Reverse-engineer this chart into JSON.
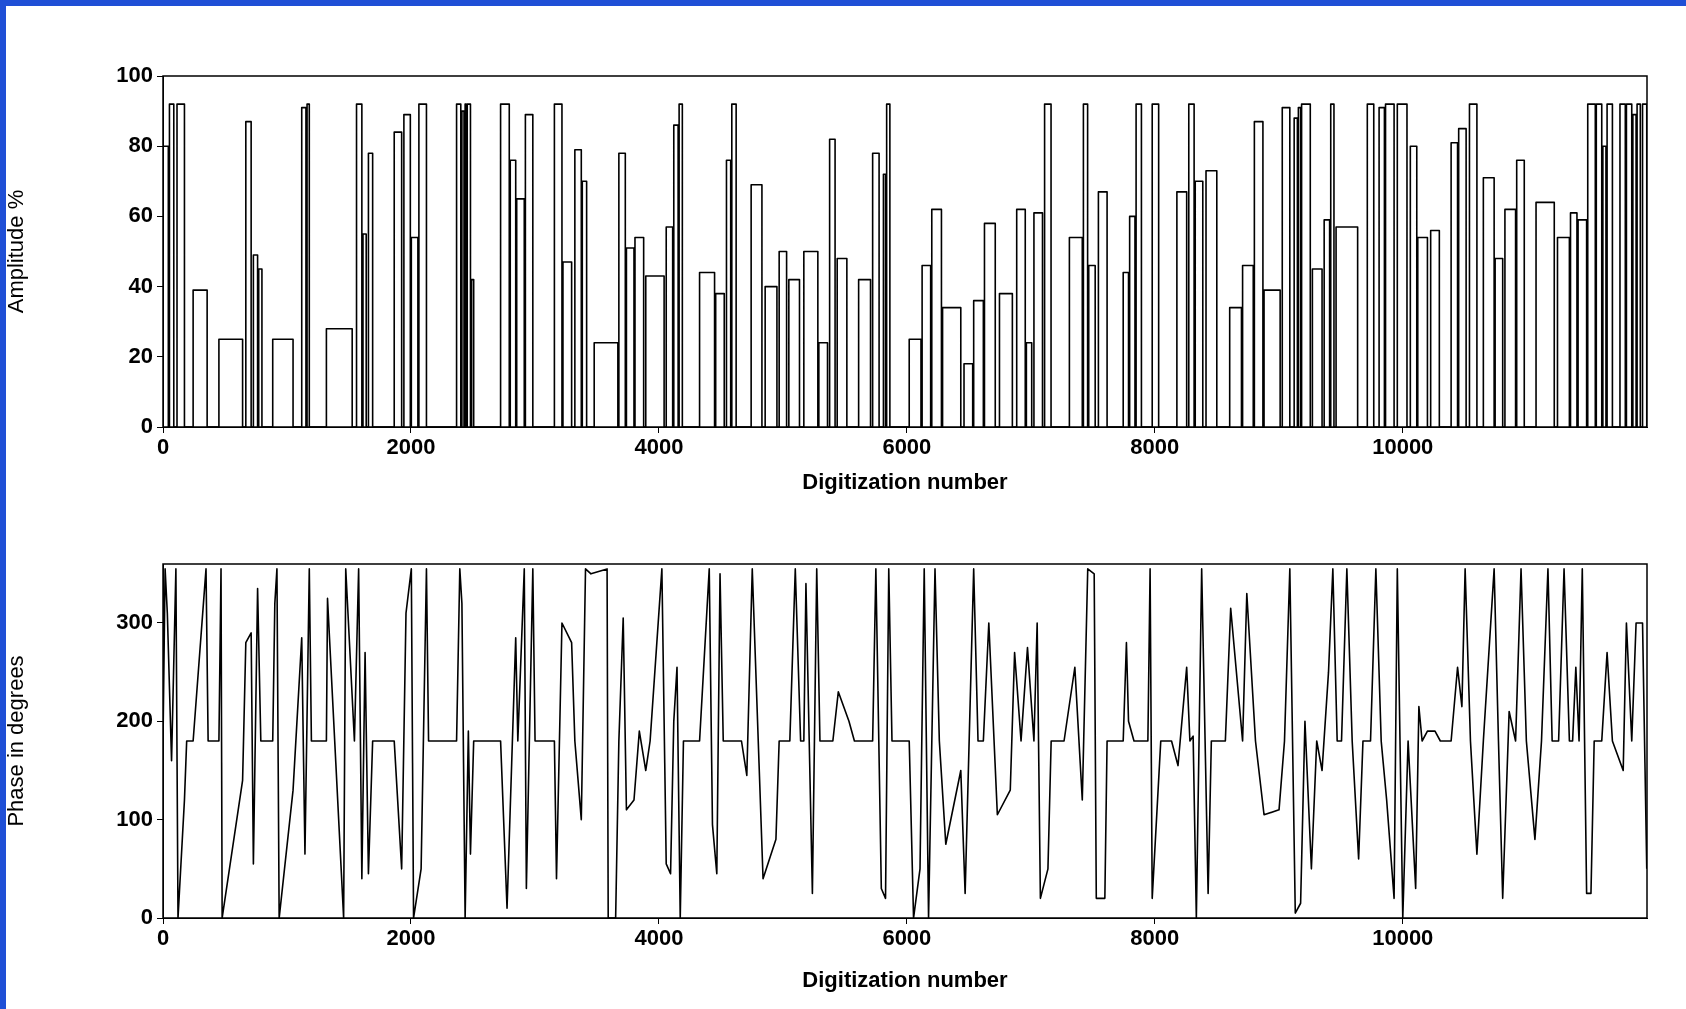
{
  "chart_data": [
    {
      "type": "step",
      "xlabel": "Digitization number",
      "ylabel": "Amplitude %",
      "xlim": [
        0,
        11970
      ],
      "ylim": [
        0,
        100
      ],
      "xticks": [
        0,
        2000,
        4000,
        6000,
        8000,
        10000
      ],
      "yticks": [
        0,
        20,
        40,
        60,
        80,
        100
      ],
      "grid": false,
      "legend": false,
      "series": [
        {
          "color": "#000000",
          "x": [
            0,
            43,
            52,
            87,
            113,
            173,
            243,
            356,
            451,
            642,
            668,
            711,
            729,
            763,
            772,
            798,
            885,
            1049,
            1119,
            1153,
            1162,
            1180,
            1318,
            1526,
            1561,
            1604,
            1613,
            1639,
            1657,
            1691,
            1865,
            1925,
            1943,
            1995,
            2003,
            2056,
            2064,
            2125,
            2368,
            2402,
            2411,
            2428,
            2437,
            2446,
            2454,
            2480,
            2489,
            2506,
            2723,
            2793,
            2801,
            2845,
            2853,
            2914,
            2923,
            2983,
            3157,
            3218,
            3226,
            3296,
            3322,
            3374,
            3382,
            3417,
            3478,
            3669,
            3677,
            3729,
            3738,
            3799,
            3807,
            3877,
            3894,
            4042,
            4059,
            4111,
            4120,
            4155,
            4163,
            4189,
            4328,
            4449,
            4458,
            4527,
            4545,
            4579,
            4588,
            4623,
            4744,
            4831,
            4857,
            4952,
            4970,
            5030,
            5048,
            5134,
            5169,
            5282,
            5290,
            5360,
            5377,
            5421,
            5438,
            5516,
            5611,
            5707,
            5724,
            5776,
            5811,
            5828,
            5837,
            5863,
            6019,
            6114,
            6123,
            6192,
            6201,
            6279,
            6288,
            6435,
            6461,
            6531,
            6539,
            6617,
            6626,
            6713,
            6747,
            6851,
            6886,
            6955,
            6964,
            7007,
            7025,
            7094,
            7111,
            7163,
            7311,
            7415,
            7424,
            7458,
            7467,
            7519,
            7545,
            7615,
            7745,
            7788,
            7797,
            7840,
            7849,
            7892,
            7979,
            8031,
            8178,
            8257,
            8274,
            8317,
            8326,
            8387,
            8413,
            8500,
            8604,
            8699,
            8708,
            8794,
            8803,
            8872,
            8881,
            9011,
            9028,
            9089,
            9124,
            9150,
            9158,
            9176,
            9184,
            9254,
            9271,
            9349,
            9366,
            9410,
            9419,
            9445,
            9462,
            9636,
            9714,
            9766,
            9809,
            9852,
            9861,
            9930,
            9956,
            10034,
            10061,
            10113,
            10121,
            10199,
            10225,
            10295,
            10390,
            10442,
            10451,
            10511,
            10538,
            10598,
            10650,
            10737,
            10745,
            10806,
            10824,
            10910,
            10919,
            10980,
            11075,
            11222,
            11248,
            11344,
            11353,
            11405,
            11414,
            11483,
            11492,
            11553,
            11561,
            11605,
            11614,
            11639,
            11648,
            11691,
            11752,
            11795,
            11804,
            11847,
            11856,
            11882,
            11890,
            11916,
            11934,
            11968
          ],
          "values": [
            80,
            0,
            92,
            0,
            92,
            0,
            39,
            0,
            25,
            0,
            87,
            0,
            49,
            0,
            45,
            0,
            25,
            0,
            91,
            0,
            92,
            0,
            28,
            0,
            92,
            0,
            55,
            0,
            78,
            0,
            84,
            0,
            89,
            0,
            54,
            0,
            92,
            0,
            92,
            0,
            90,
            0,
            92,
            0,
            92,
            0,
            42,
            0,
            92,
            0,
            76,
            0,
            65,
            0,
            89,
            0,
            92,
            0,
            47,
            0,
            79,
            0,
            70,
            0,
            24,
            0,
            78,
            0,
            51,
            0,
            54,
            0,
            43,
            0,
            57,
            0,
            86,
            0,
            92,
            0,
            44,
            0,
            38,
            0,
            76,
            0,
            92,
            0,
            69,
            0,
            40,
            0,
            50,
            0,
            42,
            0,
            50,
            0,
            24,
            0,
            82,
            0,
            48,
            0,
            42,
            0,
            78,
            0,
            72,
            0,
            92,
            0,
            25,
            0,
            46,
            0,
            62,
            0,
            34,
            0,
            18,
            0,
            36,
            0,
            58,
            0,
            38,
            0,
            62,
            0,
            24,
            0,
            61,
            0,
            92,
            0,
            54,
            0,
            92,
            0,
            46,
            0,
            67,
            0,
            44,
            0,
            60,
            0,
            92,
            0,
            92,
            0,
            67,
            0,
            92,
            0,
            70,
            0,
            73,
            0,
            34,
            0,
            46,
            0,
            87,
            0,
            39,
            0,
            91,
            0,
            88,
            0,
            91,
            0,
            92,
            0,
            45,
            0,
            59,
            0,
            92,
            0,
            57,
            0,
            92,
            0,
            91,
            0,
            92,
            0,
            92,
            0,
            80,
            0,
            54,
            0,
            56,
            0,
            81,
            0,
            85,
            0,
            92,
            0,
            71,
            0,
            48,
            0,
            62,
            0,
            76,
            0,
            64,
            0,
            54,
            0,
            61,
            0,
            59,
            0,
            92,
            0,
            92,
            0,
            80,
            0,
            92,
            0,
            92,
            0,
            92,
            0,
            89,
            0,
            92,
            0,
            92,
            0
          ]
        }
      ]
    },
    {
      "type": "line",
      "xlabel": "Digitization number",
      "ylabel": "Phase in degrees",
      "xlim": [
        0,
        11970
      ],
      "ylim": [
        0,
        360
      ],
      "xticks": [
        0,
        2000,
        4000,
        6000,
        8000,
        10000
      ],
      "yticks": [
        0,
        100,
        200,
        300
      ],
      "grid": false,
      "legend": false,
      "marker": "none",
      "series": [
        {
          "color": "#000000",
          "x": [
            0,
            17,
            35,
            69,
            104,
            121,
            173,
            191,
            243,
            347,
            364,
            451,
            468,
            477,
            642,
            668,
            711,
            729,
            763,
            789,
            885,
            902,
            919,
            937,
            1049,
            1119,
            1145,
            1180,
            1197,
            1318,
            1327,
            1457,
            1474,
            1544,
            1578,
            1604,
            1630,
            1657,
            1691,
            1865,
            1925,
            1960,
            2003,
            2021,
            2082,
            2125,
            2142,
            2368,
            2394,
            2411,
            2437,
            2463,
            2480,
            2506,
            2723,
            2775,
            2845,
            2862,
            2914,
            2931,
            2983,
            3001,
            3157,
            3174,
            3218,
            3296,
            3322,
            3374,
            3408,
            3452,
            3582,
            3591,
            3651,
            3677,
            3712,
            3738,
            3799,
            3842,
            3894,
            3929,
            4024,
            4059,
            4094,
            4120,
            4146,
            4172,
            4198,
            4328,
            4406,
            4432,
            4467,
            4493,
            4519,
            4666,
            4709,
            4753,
            4840,
            4944,
            4970,
            5056,
            5100,
            5143,
            5169,
            5186,
            5238,
            5273,
            5299,
            5403,
            5447,
            5533,
            5577,
            5724,
            5750,
            5794,
            5828,
            5854,
            5880,
            6019,
            6054,
            6106,
            6140,
            6175,
            6227,
            6262,
            6314,
            6435,
            6470,
            6539,
            6574,
            6617,
            6661,
            6730,
            6834,
            6869,
            6921,
            6973,
            7025,
            7051,
            7077,
            7138,
            7164,
            7268,
            7355,
            7415,
            7459,
            7511,
            7528,
            7597,
            7615,
            7745,
            7771,
            7788,
            7832,
            7944,
            7962,
            7979,
            8048,
            8135,
            8187,
            8257,
            8283,
            8309,
            8335,
            8378,
            8430,
            8456,
            8569,
            8612,
            8708,
            8742,
            8812,
            8881,
            9002,
            9046,
            9089,
            9133,
            9176,
            9211,
            9263,
            9306,
            9349,
            9401,
            9436,
            9471,
            9506,
            9549,
            9592,
            9644,
            9679,
            9740,
            9783,
            9826,
            9870,
            9930,
            9956,
            10000,
            10043,
            10104,
            10130,
            10156,
            10199,
            10260,
            10303,
            10390,
            10442,
            10477,
            10503,
            10546,
            10598,
            10650,
            10737,
            10772,
            10806,
            10858,
            10910,
            10954,
            10997,
            11066,
            11119,
            11171,
            11205,
            11257,
            11301,
            11344,
            11370,
            11396,
            11422,
            11448,
            11483,
            11518,
            11544,
            11605,
            11648,
            11691,
            11778,
            11804,
            11847,
            11882,
            11934,
            11968
          ],
          "values": [
            180,
            355,
            310,
            160,
            355,
            0,
            120,
            180,
            180,
            355,
            180,
            180,
            355,
            0,
            140,
            280,
            290,
            55,
            335,
            180,
            180,
            320,
            355,
            0,
            130,
            285,
            65,
            355,
            180,
            180,
            325,
            0,
            355,
            180,
            355,
            40,
            270,
            45,
            180,
            180,
            50,
            310,
            355,
            0,
            50,
            355,
            180,
            180,
            355,
            320,
            0,
            190,
            65,
            180,
            180,
            10,
            285,
            180,
            355,
            30,
            355,
            180,
            180,
            40,
            300,
            280,
            180,
            100,
            355,
            350,
            355,
            0,
            0,
            180,
            305,
            110,
            120,
            190,
            150,
            180,
            355,
            55,
            45,
            200,
            255,
            0,
            180,
            180,
            355,
            95,
            45,
            350,
            180,
            180,
            145,
            355,
            40,
            80,
            180,
            180,
            355,
            180,
            180,
            340,
            25,
            355,
            180,
            180,
            230,
            200,
            180,
            180,
            355,
            30,
            20,
            355,
            180,
            180,
            0,
            50,
            355,
            0,
            355,
            180,
            75,
            150,
            25,
            355,
            180,
            180,
            300,
            105,
            130,
            270,
            180,
            275,
            180,
            300,
            20,
            50,
            180,
            180,
            255,
            120,
            355,
            350,
            20,
            20,
            180,
            180,
            280,
            200,
            180,
            180,
            355,
            20,
            180,
            180,
            155,
            255,
            180,
            185,
            0,
            355,
            25,
            180,
            180,
            315,
            180,
            330,
            180,
            105,
            110,
            180,
            355,
            5,
            15,
            200,
            50,
            180,
            150,
            250,
            355,
            180,
            180,
            355,
            180,
            60,
            180,
            180,
            355,
            180,
            120,
            20,
            355,
            0,
            180,
            30,
            215,
            180,
            190,
            190,
            180,
            180,
            255,
            215,
            355,
            180,
            65,
            180,
            355,
            180,
            20,
            210,
            180,
            355,
            180,
            80,
            180,
            355,
            180,
            180,
            355,
            180,
            180,
            255,
            180,
            355,
            25,
            25,
            180,
            180,
            270,
            180,
            150,
            300,
            180,
            300,
            300,
            50
          ]
        }
      ]
    }
  ]
}
